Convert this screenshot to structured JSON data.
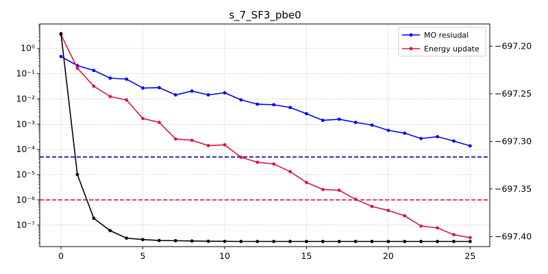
{
  "chart_data": {
    "type": "line",
    "title": "s_7_SF3_pbe0",
    "x": [
      0,
      1,
      2,
      3,
      4,
      5,
      6,
      7,
      8,
      9,
      10,
      11,
      12,
      13,
      14,
      15,
      16,
      17,
      18,
      19,
      20,
      21,
      22,
      23,
      24,
      25
    ],
    "xlim": [
      -1.3,
      26.2
    ],
    "xticks": [
      0,
      5,
      10,
      15,
      20,
      25
    ],
    "left_axis": {
      "scale": "log",
      "ylim_log10": [
        -7.85,
        0.97
      ],
      "ticks": [
        {
          "exp": 0,
          "label": "10⁰"
        },
        {
          "exp": -1,
          "label": "10⁻¹"
        },
        {
          "exp": -2,
          "label": "10⁻²"
        },
        {
          "exp": -3,
          "label": "10⁻³"
        },
        {
          "exp": -4,
          "label": "10⁻⁴"
        },
        {
          "exp": -5,
          "label": "10⁻⁵"
        },
        {
          "exp": -6,
          "label": "10⁻⁶"
        },
        {
          "exp": -7,
          "label": "10⁻⁷"
        }
      ]
    },
    "right_axis": {
      "scale": "linear",
      "ylim": [
        -697.4105,
        -697.1767
      ],
      "ticks": [
        {
          "value": -697.2,
          "label": "−697.20"
        },
        {
          "value": -697.25,
          "label": "−697.25"
        },
        {
          "value": -697.3,
          "label": "−697.30"
        },
        {
          "value": -697.35,
          "label": "−697.35"
        },
        {
          "value": -697.4,
          "label": "−697.40"
        }
      ]
    },
    "series": [
      {
        "name": "MO resiudal",
        "axis": "left",
        "color": "#0000ee",
        "values": [
          0.48,
          0.21,
          0.135,
          0.067,
          0.061,
          0.027,
          0.028,
          0.0145,
          0.0205,
          0.0145,
          0.0175,
          0.0092,
          0.0062,
          0.0059,
          0.0046,
          0.0026,
          0.00142,
          0.00157,
          0.00118,
          0.00092,
          0.00057,
          0.00044,
          0.00027,
          0.00032,
          0.000215,
          0.000138
        ]
      },
      {
        "name": "Energy update",
        "axis": "left",
        "color": "#dc143c",
        "values": [
          3.5,
          0.165,
          0.032,
          0.0125,
          0.0091,
          0.00168,
          0.00118,
          0.00026,
          0.00023,
          0.000142,
          0.000152,
          4.9e-05,
          3.1e-05,
          2.65e-05,
          1.32e-05,
          4.9e-06,
          2.6e-06,
          2.4e-06,
          1.05e-06,
          5.5e-07,
          3.8e-07,
          2.35e-07,
          9.2e-08,
          7.8e-08,
          4.2e-08,
          3.2e-08
        ]
      },
      {
        "axis": "right",
        "color": "#000000",
        "values": [
          -697.1869,
          -697.3348,
          -697.3807,
          -697.3937,
          -697.4016,
          -697.4031,
          -697.4041,
          -697.4043,
          -697.4046,
          -697.4049,
          -697.405,
          -697.4051,
          -697.4051,
          -697.4051,
          -697.4051,
          -697.4051,
          -697.4051,
          -697.4051,
          -697.4051,
          -697.4051,
          -697.4051,
          -697.4051,
          -697.4051,
          -697.4051,
          -697.4051,
          -697.4051
        ]
      }
    ],
    "thresholds": [
      {
        "value": 5e-05,
        "color": "#0000aa",
        "style": "dashed",
        "axis": "left"
      },
      {
        "value": 1e-06,
        "color": "#dc143c",
        "style": "dashed",
        "axis": "left"
      }
    ],
    "grid": true,
    "legend": {
      "placement": "top-right",
      "entries": [
        "MO resiudal",
        "Energy update"
      ]
    }
  }
}
